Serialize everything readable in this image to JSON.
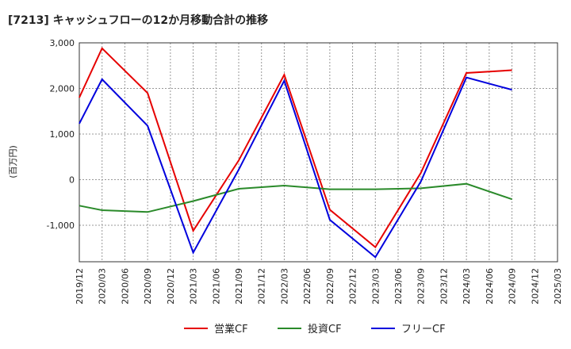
{
  "chart_data": {
    "type": "line",
    "title": "[7213]  キャッシュフローの12か月移動合計の推移",
    "ylabel": "(百万円)",
    "xlabel": "",
    "ylim": [
      -1800,
      3000
    ],
    "yticks": [
      3000,
      2000,
      1000,
      0,
      -1000
    ],
    "ytick_labels": [
      "3,000",
      "2,000",
      "1,000",
      "0",
      "-1,000"
    ],
    "categories": [
      "2019/12",
      "2020/03",
      "2020/06",
      "2020/09",
      "2020/12",
      "2021/03",
      "2021/06",
      "2021/09",
      "2021/12",
      "2022/03",
      "2022/06",
      "2022/09",
      "2022/12",
      "2023/03",
      "2023/06",
      "2023/09",
      "2023/12",
      "2024/03",
      "2024/06",
      "2024/09",
      "2024/12",
      "2025/03"
    ],
    "grid": true,
    "legend_position": "bottom",
    "series": [
      {
        "name": "営業CF",
        "color": "#e60000",
        "values": [
          1800,
          2880,
          null,
          1900,
          null,
          -1120,
          null,
          420,
          null,
          2300,
          null,
          -660,
          null,
          -1480,
          null,
          150,
          null,
          2340,
          null,
          2400,
          null,
          null
        ]
      },
      {
        "name": "投資CF",
        "color": "#2a8a2a",
        "values": [
          -570,
          -670,
          null,
          -710,
          null,
          -470,
          null,
          -200,
          null,
          -130,
          null,
          -210,
          null,
          -210,
          null,
          -190,
          null,
          -90,
          null,
          -430,
          null,
          null
        ]
      },
      {
        "name": "フリーCF",
        "color": "#0000dd",
        "values": [
          1230,
          2200,
          null,
          1180,
          null,
          -1600,
          null,
          220,
          null,
          2170,
          null,
          -880,
          null,
          -1700,
          null,
          -40,
          null,
          2240,
          null,
          1970,
          null,
          null
        ]
      }
    ]
  }
}
